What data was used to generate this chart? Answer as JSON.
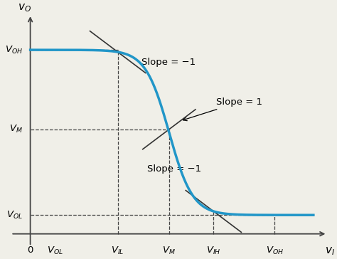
{
  "background_color": "#f0efe8",
  "curve_color": "#2196c8",
  "curve_linewidth": 2.5,
  "line_color": "#444444",
  "dashed_color": "#444444",
  "dashed_lw": 0.9,
  "tangent_color": "#333333",
  "tangent_lw": 1.2,
  "VOH": 0.88,
  "VOL": 0.09,
  "VM": 0.5,
  "VIL": 0.315,
  "VIH": 0.66,
  "xlim": [
    -0.08,
    1.08
  ],
  "ylim": [
    -0.07,
    1.06
  ],
  "slope_neg1_label": "Slope = −1",
  "slope_pos1_label": "Slope = 1",
  "slope_neg1b_label": "Slope = −1",
  "xlabel_label": "$v_I$",
  "ylabel_label": "$v_O$",
  "label_fontsize": 10,
  "tick_label_fontsize": 9.5,
  "annot_fontsize": 9.5
}
